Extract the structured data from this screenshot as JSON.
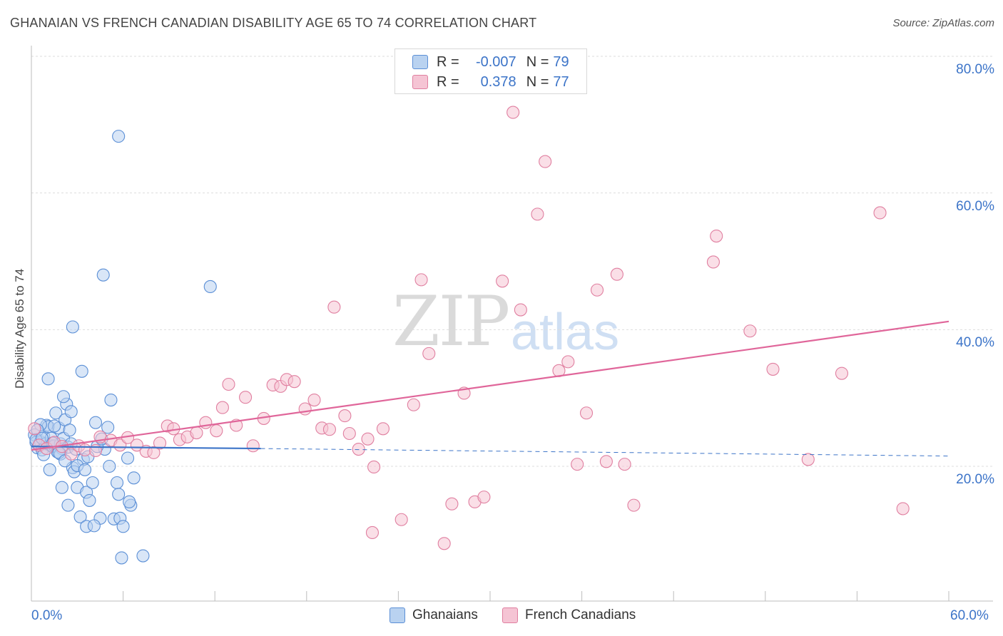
{
  "chart_data": {
    "type": "scatter",
    "title": "GHANAIAN VS FRENCH CANADIAN DISABILITY AGE 65 TO 74 CORRELATION CHART",
    "source": "Source: ZipAtlas.com",
    "xlabel": "",
    "ylabel": "Disability Age 65 to 74",
    "xlim": [
      0,
      60
    ],
    "ylim": [
      0,
      85
    ],
    "x_tick_labels": [
      "0.0%",
      "60.0%"
    ],
    "y_ticks": [
      20,
      40,
      60,
      80
    ],
    "y_tick_labels": [
      "20.0%",
      "40.0%",
      "60.0%",
      "80.0%"
    ],
    "watermark": {
      "zip": "ZIP",
      "atlas": "atlas"
    },
    "legend_stats": [
      {
        "r_label": "R =",
        "r_value": "-0.007",
        "n_label": "N =",
        "n_value": "79"
      },
      {
        "r_label": "R =",
        "r_value": "0.378",
        "n_label": "N =",
        "n_value": "77"
      }
    ],
    "series": [
      {
        "name": "Ghanaians",
        "color": "#5b8fd6",
        "fill": "#b9d2f0",
        "trend": {
          "x0": 0,
          "y0": 22.9,
          "x1": 15,
          "y1": 22.6,
          "dash_x1": 60,
          "dash_y1": 21.5
        },
        "points": [
          [
            0.2,
            24.6
          ],
          [
            0.3,
            23.5
          ],
          [
            0.4,
            22.7
          ],
          [
            0.5,
            23.1
          ],
          [
            0.6,
            23.6
          ],
          [
            0.7,
            22.4
          ],
          [
            0.8,
            24.4
          ],
          [
            0.9,
            23.3
          ],
          [
            1.0,
            26.0
          ],
          [
            1.1,
            25.8
          ],
          [
            1.2,
            23.1
          ],
          [
            1.3,
            24.1
          ],
          [
            1.4,
            22.9
          ],
          [
            1.5,
            23.0
          ],
          [
            1.6,
            27.8
          ],
          [
            1.7,
            22.1
          ],
          [
            1.8,
            25.6
          ],
          [
            1.9,
            23.3
          ],
          [
            2.0,
            22.6
          ],
          [
            2.1,
            24.1
          ],
          [
            2.2,
            26.8
          ],
          [
            2.3,
            29.1
          ],
          [
            2.4,
            22.8
          ],
          [
            2.5,
            25.3
          ],
          [
            2.6,
            28.0
          ],
          [
            2.7,
            19.8
          ],
          [
            2.8,
            19.2
          ],
          [
            2.9,
            22.5
          ],
          [
            3.0,
            16.9
          ],
          [
            3.2,
            12.6
          ],
          [
            3.4,
            21.0
          ],
          [
            3.6,
            16.2
          ],
          [
            3.8,
            15.0
          ],
          [
            4.0,
            17.6
          ],
          [
            4.2,
            26.4
          ],
          [
            4.5,
            12.4
          ],
          [
            4.8,
            22.5
          ],
          [
            5.0,
            25.7
          ],
          [
            5.2,
            29.7
          ],
          [
            5.4,
            12.3
          ],
          [
            5.6,
            17.6
          ],
          [
            5.8,
            12.4
          ],
          [
            6.0,
            11.2
          ],
          [
            6.3,
            21.2
          ],
          [
            6.5,
            14.3
          ],
          [
            6.7,
            18.3
          ],
          [
            1.1,
            32.8
          ],
          [
            2.1,
            30.2
          ],
          [
            2.7,
            40.4
          ],
          [
            3.3,
            33.9
          ],
          [
            4.7,
            48.0
          ],
          [
            5.7,
            68.3
          ],
          [
            11.7,
            46.3
          ],
          [
            2.0,
            16.9
          ],
          [
            2.4,
            14.3
          ],
          [
            3.6,
            11.2
          ],
          [
            4.1,
            11.3
          ],
          [
            5.7,
            15.9
          ],
          [
            6.4,
            14.8
          ],
          [
            5.9,
            6.6
          ],
          [
            7.3,
            6.9
          ],
          [
            0.6,
            26.1
          ],
          [
            1.2,
            19.5
          ],
          [
            1.9,
            21.8
          ],
          [
            0.4,
            25.3
          ],
          [
            0.8,
            21.7
          ],
          [
            1.5,
            25.9
          ],
          [
            2.6,
            23.3
          ],
          [
            3.0,
            20.1
          ],
          [
            3.5,
            19.5
          ],
          [
            4.3,
            22.9
          ],
          [
            5.1,
            20.0
          ],
          [
            0.3,
            23.9
          ],
          [
            0.7,
            24.1
          ],
          [
            1.4,
            23.4
          ],
          [
            1.8,
            22.0
          ],
          [
            2.2,
            20.8
          ],
          [
            3.7,
            21.4
          ],
          [
            4.6,
            24.0
          ]
        ]
      },
      {
        "name": "French Canadians",
        "color": "#e07fa0",
        "fill": "#f5c4d4",
        "trend": {
          "x0": 0,
          "y0": 22.4,
          "x1": 60,
          "y1": 41.2
        },
        "points": [
          [
            0.2,
            25.5
          ],
          [
            0.5,
            23.1
          ],
          [
            1.0,
            22.6
          ],
          [
            1.5,
            23.5
          ],
          [
            2.0,
            22.9
          ],
          [
            2.6,
            21.8
          ],
          [
            3.1,
            23.0
          ],
          [
            3.5,
            22.4
          ],
          [
            4.2,
            22.3
          ],
          [
            4.5,
            24.3
          ],
          [
            5.2,
            23.8
          ],
          [
            5.8,
            23.1
          ],
          [
            6.3,
            24.2
          ],
          [
            6.9,
            23.1
          ],
          [
            7.5,
            22.2
          ],
          [
            8.0,
            22.0
          ],
          [
            8.4,
            23.4
          ],
          [
            8.9,
            25.9
          ],
          [
            9.3,
            25.5
          ],
          [
            9.7,
            23.9
          ],
          [
            10.2,
            24.3
          ],
          [
            10.8,
            24.9
          ],
          [
            11.4,
            26.4
          ],
          [
            12.1,
            25.2
          ],
          [
            12.5,
            28.6
          ],
          [
            12.9,
            32.0
          ],
          [
            13.4,
            26.0
          ],
          [
            14.0,
            30.1
          ],
          [
            14.5,
            23.0
          ],
          [
            15.2,
            27.0
          ],
          [
            15.8,
            31.9
          ],
          [
            16.3,
            31.7
          ],
          [
            16.7,
            32.7
          ],
          [
            17.2,
            32.4
          ],
          [
            17.9,
            28.4
          ],
          [
            18.5,
            29.7
          ],
          [
            19.0,
            25.6
          ],
          [
            19.5,
            25.4
          ],
          [
            19.8,
            43.3
          ],
          [
            20.5,
            27.4
          ],
          [
            20.8,
            24.8
          ],
          [
            21.4,
            22.5
          ],
          [
            22.0,
            24.0
          ],
          [
            22.4,
            19.9
          ],
          [
            23.0,
            25.5
          ],
          [
            22.3,
            10.3
          ],
          [
            24.2,
            12.2
          ],
          [
            25.0,
            29.0
          ],
          [
            25.5,
            47.3
          ],
          [
            26.0,
            36.5
          ],
          [
            27.0,
            8.7
          ],
          [
            27.5,
            14.5
          ],
          [
            28.3,
            30.7
          ],
          [
            29.0,
            14.8
          ],
          [
            29.6,
            15.5
          ],
          [
            30.8,
            47.1
          ],
          [
            31.5,
            71.8
          ],
          [
            32.0,
            42.9
          ],
          [
            33.1,
            56.9
          ],
          [
            33.6,
            64.6
          ],
          [
            34.5,
            34.0
          ],
          [
            35.1,
            35.3
          ],
          [
            35.7,
            20.3
          ],
          [
            36.3,
            27.8
          ],
          [
            37.0,
            45.8
          ],
          [
            37.6,
            20.7
          ],
          [
            38.3,
            48.1
          ],
          [
            38.8,
            20.3
          ],
          [
            39.4,
            14.3
          ],
          [
            44.6,
            49.9
          ],
          [
            44.8,
            53.7
          ],
          [
            47.0,
            39.8
          ],
          [
            48.5,
            34.2
          ],
          [
            50.8,
            21.0
          ],
          [
            53.0,
            33.6
          ],
          [
            55.5,
            57.1
          ],
          [
            57.0,
            13.8
          ]
        ]
      }
    ]
  }
}
